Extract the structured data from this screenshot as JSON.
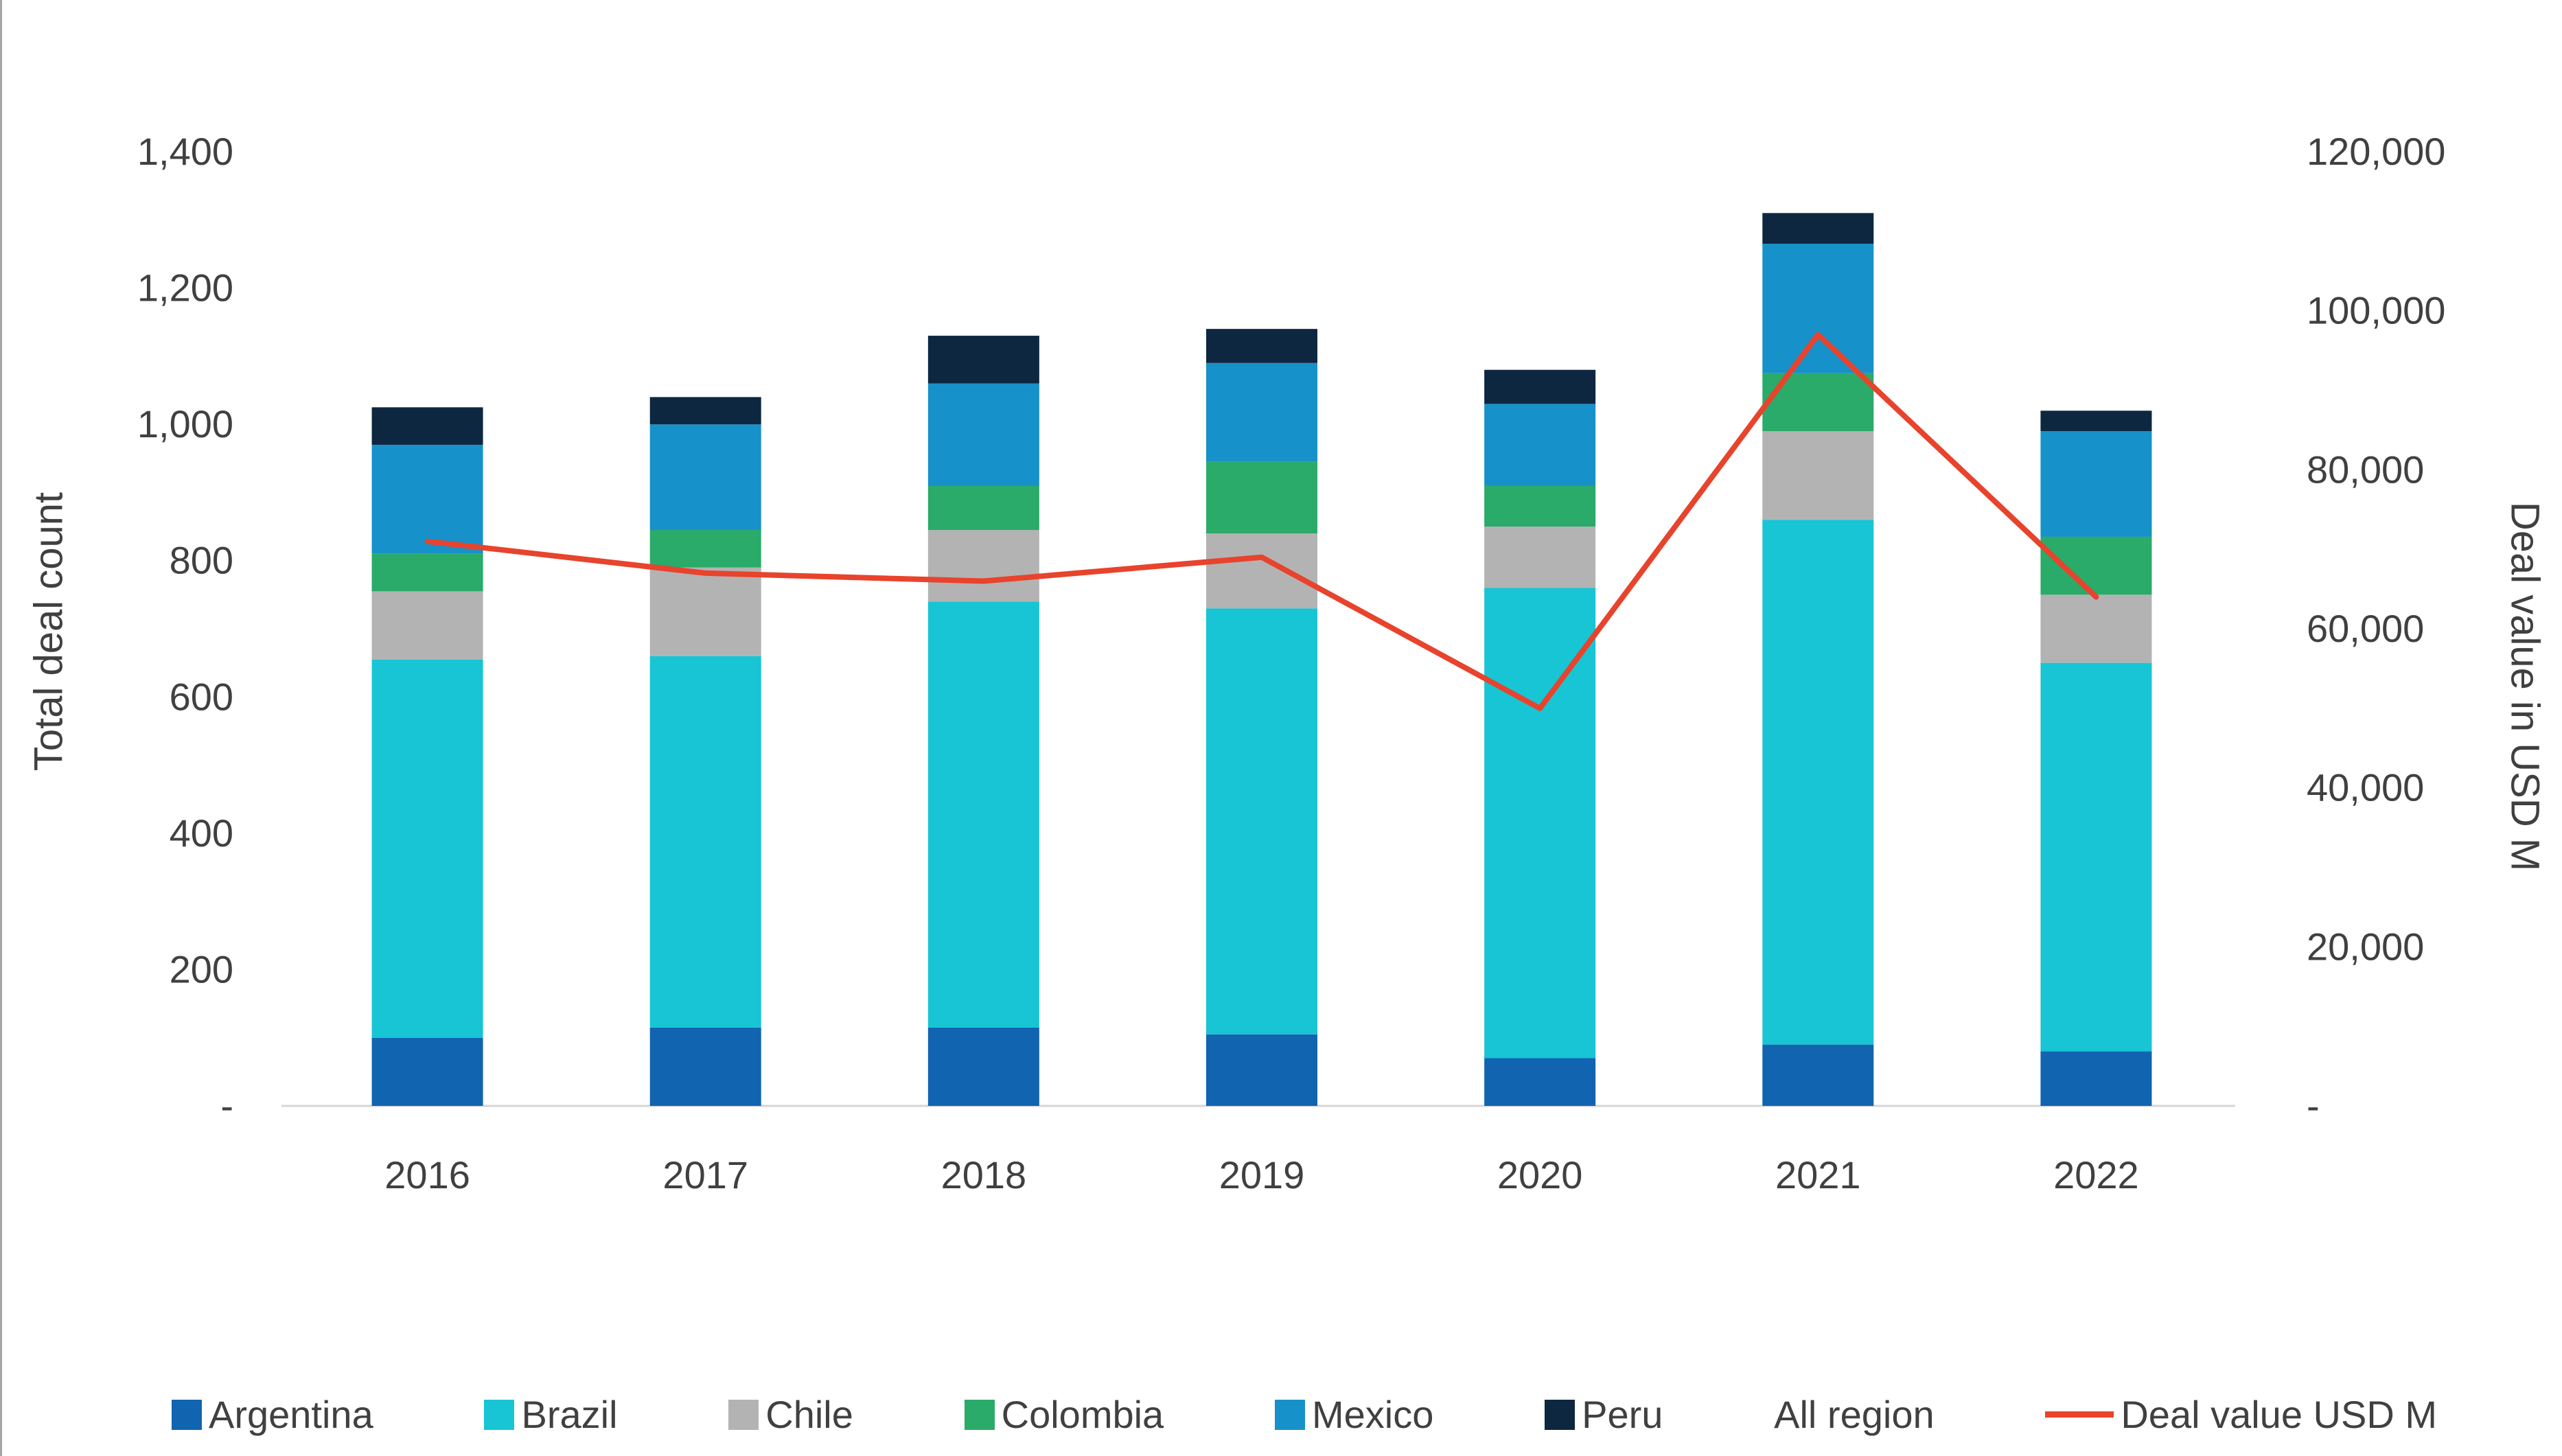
{
  "page": {
    "background": "#ffffff",
    "left_border_color": "#a6a6a6",
    "text_color": "#404040",
    "axis_line_color": "#d6d6d6"
  },
  "chart_data": {
    "type": "combo: stacked bar (deal counts by country) + line (deal value, right axis)",
    "categories": [
      "2016",
      "2017",
      "2018",
      "2019",
      "2020",
      "2021",
      "2022"
    ],
    "series": [
      {
        "name": "Argentina",
        "color": "#1164b0",
        "values": [
          100,
          115,
          115,
          105,
          70,
          90,
          80
        ]
      },
      {
        "name": "Brazil",
        "color": "#17c5d4",
        "values": [
          555,
          545,
          625,
          625,
          690,
          770,
          570
        ]
      },
      {
        "name": "Chile",
        "color": "#b3b3b3",
        "values": [
          100,
          130,
          105,
          110,
          90,
          130,
          100
        ]
      },
      {
        "name": "Colombia",
        "color": "#2aab69",
        "values": [
          55,
          55,
          65,
          105,
          60,
          85,
          85
        ]
      },
      {
        "name": "Mexico",
        "color": "#1791c9",
        "values": [
          160,
          155,
          150,
          145,
          120,
          190,
          155
        ]
      },
      {
        "name": "Peru",
        "color": "#0d2740",
        "values": [
          55,
          40,
          70,
          50,
          50,
          45,
          30
        ]
      }
    ],
    "stacked_totals": [
      1025,
      1040,
      1130,
      1140,
      1080,
      1310,
      1020
    ],
    "line_series": {
      "name": "Deal value USD M",
      "color": "#e8432c",
      "axis": "right",
      "values": [
        71000,
        67000,
        66000,
        69000,
        50000,
        97000,
        64000
      ]
    },
    "left_axis": {
      "label": "Total deal count",
      "min": 0,
      "max": 1400,
      "tick_interval": 200,
      "ticks": [
        "-",
        "200",
        "400",
        "600",
        "800",
        "1,000",
        "1,200",
        "1,400"
      ]
    },
    "right_axis": {
      "label": "Deal value in USD M",
      "min": 0,
      "max": 120000,
      "tick_interval": 20000,
      "ticks": [
        "-",
        "20,000",
        "40,000",
        "60,000",
        "80,000",
        "100,000",
        "120,000"
      ]
    },
    "grid": false,
    "legend_position": "bottom"
  },
  "legend": {
    "items": [
      {
        "label": "Argentina",
        "marker": "square",
        "color": "#1164b0"
      },
      {
        "label": "Brazil",
        "marker": "square",
        "color": "#17c5d4"
      },
      {
        "label": "Chile",
        "marker": "square",
        "color": "#b3b3b3"
      },
      {
        "label": "Colombia",
        "marker": "square",
        "color": "#2aab69"
      },
      {
        "label": "Mexico",
        "marker": "square",
        "color": "#1791c9"
      },
      {
        "label": "Peru",
        "marker": "square",
        "color": "#0d2740"
      },
      {
        "label": "All region",
        "marker": "none",
        "color": ""
      },
      {
        "label": "Deal value USD M",
        "marker": "line",
        "color": "#e8432c"
      }
    ]
  }
}
